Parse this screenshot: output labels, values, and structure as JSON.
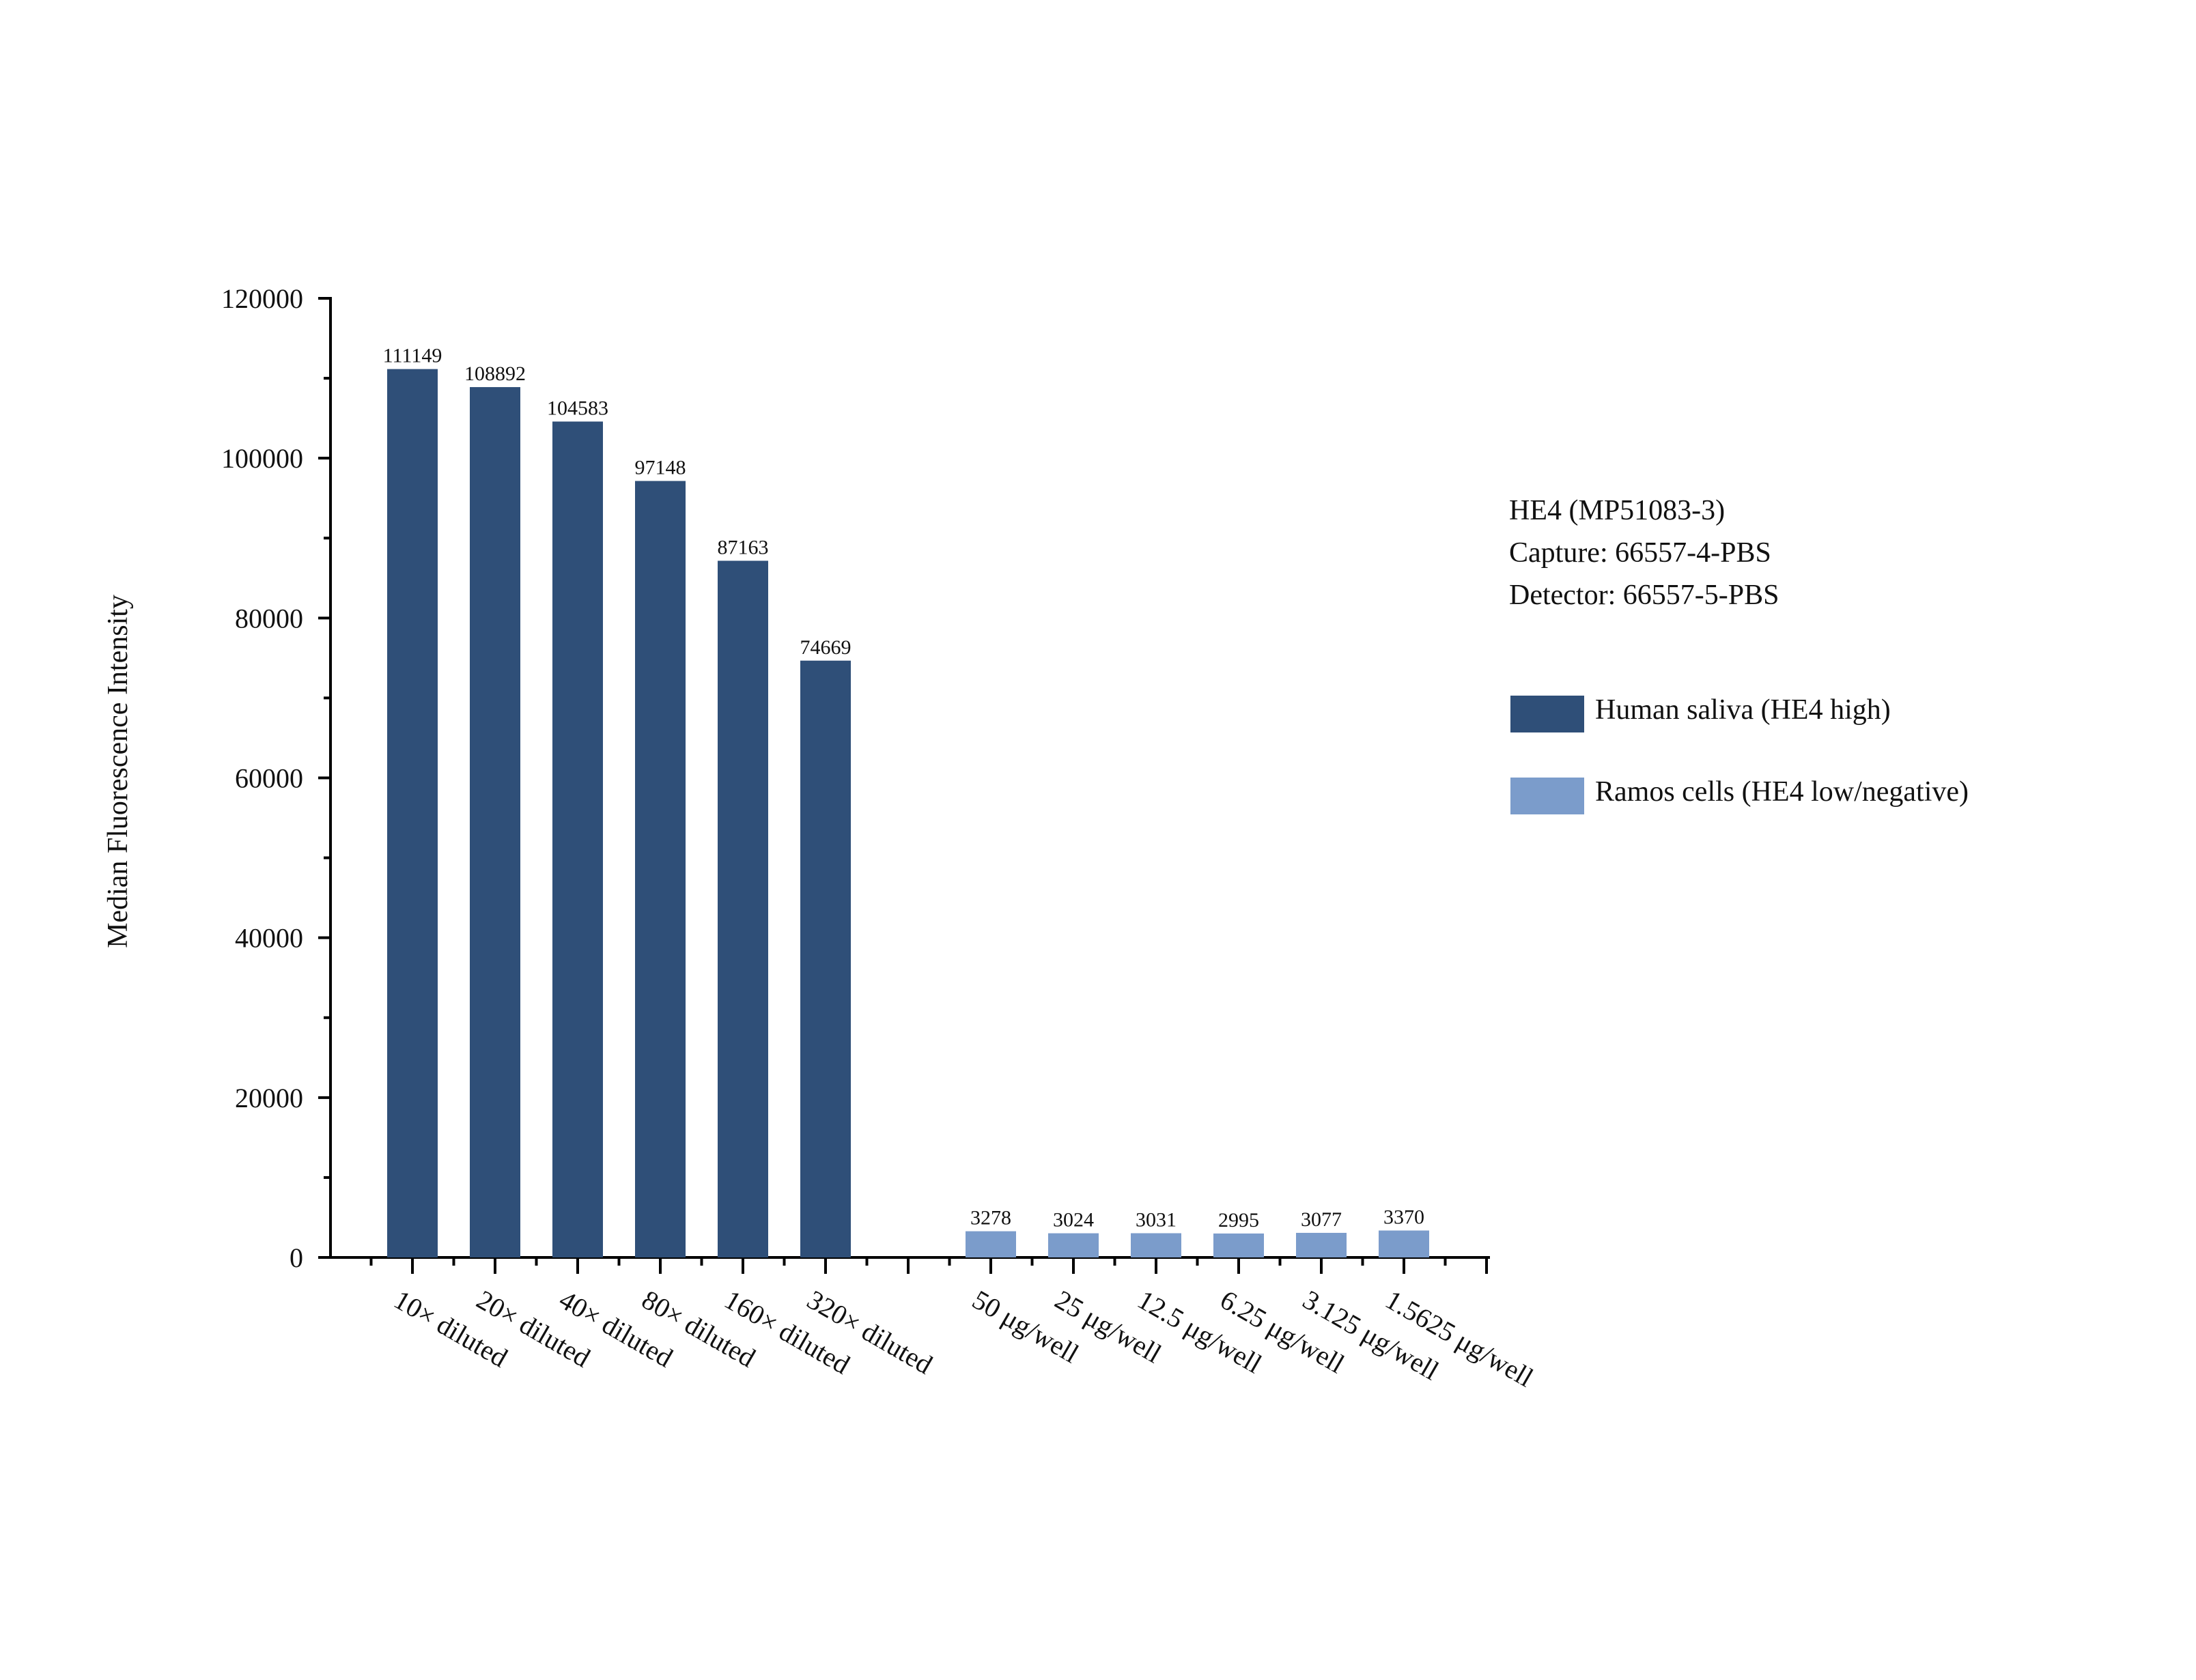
{
  "info": {
    "line1": "HE4 (MP51083-3)",
    "line2": "Capture: 66557-4-PBS",
    "line3": "Detector: 66557-5-PBS"
  },
  "colors": {
    "saliva": "#2f4f78",
    "ramos": "#7b9ccb"
  },
  "chart_data": {
    "type": "bar",
    "ylabel": "Median Fluorescence Intensity",
    "ylim": [
      0,
      120000
    ],
    "yticks": [
      "0",
      "20000",
      "40000",
      "60000",
      "80000",
      "100000",
      "120000"
    ],
    "legend_position": "right",
    "series": [
      {
        "name": "Human saliva (HE4 high)",
        "color": "#2f4f78",
        "categories": [
          "10× diluted",
          "20× diluted",
          "40× diluted",
          "80× diluted",
          "160× diluted",
          "320× diluted"
        ],
        "values": [
          111149,
          108892,
          104583,
          97148,
          87163,
          74669
        ]
      },
      {
        "name": "Ramos cells (HE4 low/negative)",
        "color": "#7b9ccb",
        "categories": [
          "50 μg/well",
          "25 μg/well",
          "12.5 μg/well",
          "6.25 μg/well",
          "3.125 μg/well",
          "1.5625 μg/well"
        ],
        "values": [
          3278,
          3024,
          3031,
          2995,
          3077,
          3370
        ]
      }
    ]
  }
}
